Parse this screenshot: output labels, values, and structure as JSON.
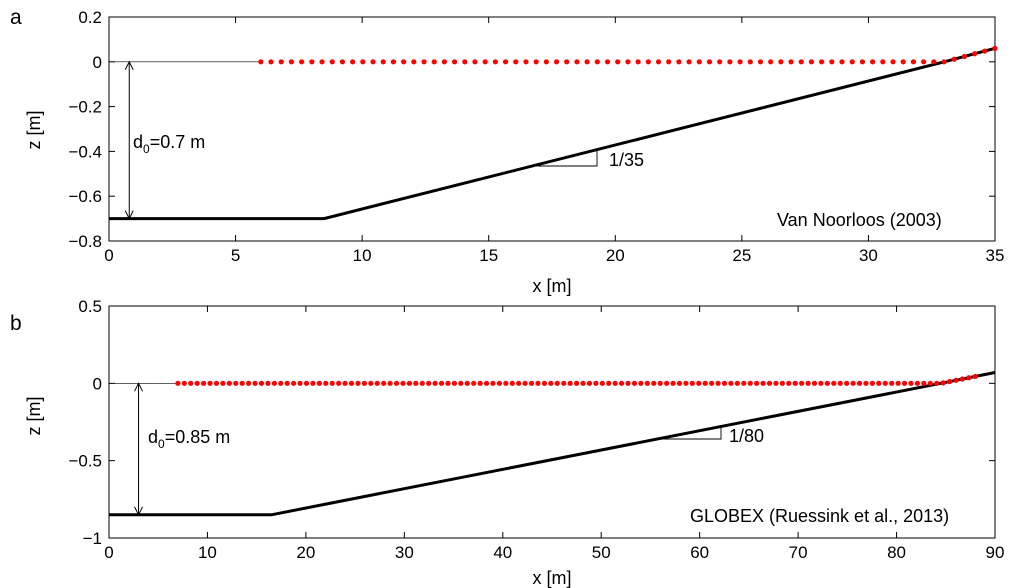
{
  "chart_data": [
    {
      "type": "scatter",
      "panel_label": "a",
      "title": "",
      "xlabel": "x [m]",
      "ylabel": "z [m]",
      "xlim": [
        0,
        35
      ],
      "ylim": [
        -0.8,
        0.2
      ],
      "xticks": [
        "0",
        "5",
        "10",
        "15",
        "20",
        "25",
        "30",
        "35"
      ],
      "yticks": [
        "0.2",
        "0",
        "−0.2",
        "−0.4",
        "−0.6",
        "−0.8"
      ],
      "grid": false,
      "source_label": "Van Noorloos (2003)",
      "depth_label": {
        "prefix": "d",
        "subscript": "0",
        "suffix": "=0.7 m"
      },
      "slope_label": "1/35",
      "series": [
        {
          "role": "bed-profile",
          "color": "#000000",
          "style": "line",
          "points": [
            [
              0,
              -0.7
            ],
            [
              8.5,
              -0.7
            ],
            [
              33,
              0
            ],
            [
              35,
              0.06
            ]
          ]
        },
        {
          "role": "gauges",
          "color": "#ff0000",
          "style": "markers",
          "x_start": 6,
          "x_end": 35,
          "count": 73,
          "y_follows": "max(0, bed)"
        }
      ]
    },
    {
      "type": "scatter",
      "panel_label": "b",
      "title": "",
      "xlabel": "x [m]",
      "ylabel": "z [m]",
      "xlim": [
        0,
        90
      ],
      "ylim": [
        -1,
        0.5
      ],
      "xticks": [
        "0",
        "10",
        "20",
        "30",
        "40",
        "50",
        "60",
        "70",
        "80",
        "90"
      ],
      "yticks": [
        "0.5",
        "0",
        "−0.5",
        "−1"
      ],
      "grid": false,
      "source_label": "GLOBEX (Ruessink et al., 2013)",
      "depth_label": {
        "prefix": "d",
        "subscript": "0",
        "suffix": "=0.85 m"
      },
      "slope_label": "1/80",
      "series": [
        {
          "role": "bed-profile",
          "color": "#000000",
          "style": "line",
          "points": [
            [
              0,
              -0.85
            ],
            [
              16.5,
              -0.85
            ],
            [
              84.5,
              0
            ],
            [
              90,
              0.07
            ]
          ]
        },
        {
          "role": "gauges",
          "color": "#ff0000",
          "style": "markers",
          "x_start": 7,
          "x_end": 88,
          "count": 125,
          "y_follows": "max(0, bed)"
        }
      ]
    }
  ]
}
